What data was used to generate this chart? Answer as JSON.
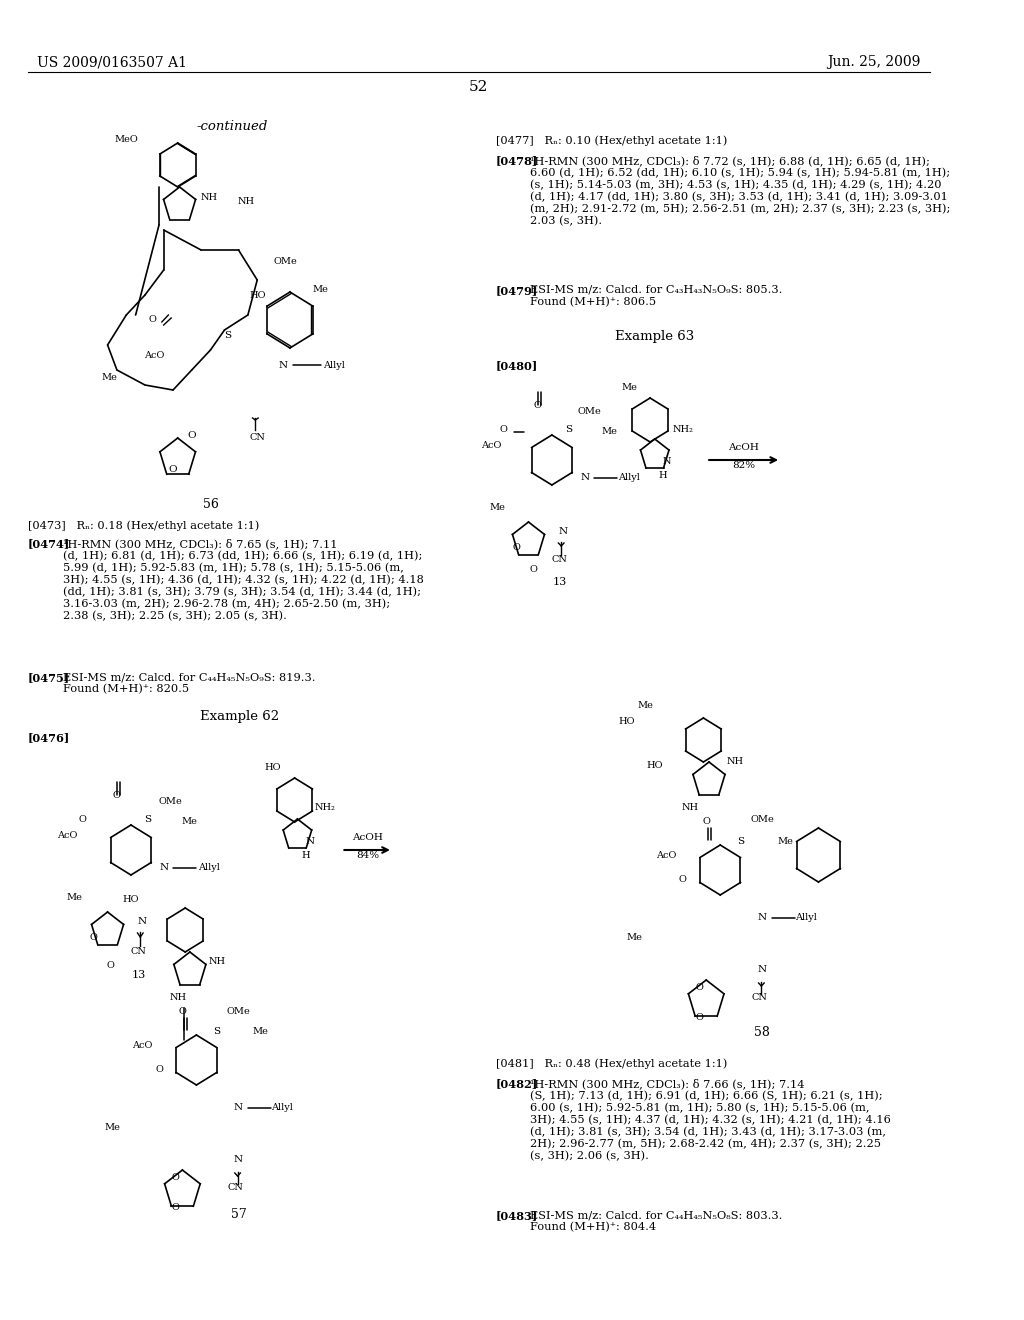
{
  "page_header_left": "US 2009/0163507 A1",
  "page_header_right": "Jun. 25, 2009",
  "page_number": "52",
  "background_color": "#ffffff",
  "text_color": "#000000",
  "continued_label": "-continued",
  "paragraph_0477": "[0477]   Rₙ: 0.10 (Hex/ethyl acetate 1:1)",
  "paragraph_0478_bold": "[0478]",
  "paragraph_0478_text": "   ¹H-RMN (300 MHz, CDCl₃): δ 7.72 (s, 1H); 6.88 (d, 1H); 6.65 (d, 1H); 6.60 (d, 1H); 6.52 (dd, 1H); 6.10 (s, 1H); 5.94 (s, 1H); 5.94-5.81 (m, 1H); (s, 1H); 5.14-5.03 (m, 3H); 4.53 (s, 1H); 4.35 (d, 1H); 4.29 (s, 1H); 4.20 (d, 1H); 4.17 (dd, 1H); 3.80 (s, 3H); 3.53 (d, 1H); 3.41 (d, 1H); 3.09-3.01 (m, 2H); 2.91-2.72 (m, 5H); 2.56-2.51 (m, 2H); 2.37 (s, 3H); 2.23 (s, 3H); 2.03 (s, 3H).",
  "paragraph_0479_bold": "[0479]",
  "paragraph_0479_text": "   ESI-MS m/z: Calcd. for C₄₃H₄₃N₅O₉S: 805.3. Found (M+H)⁺: 806.5",
  "example63": "Example 63",
  "paragraph_0480_bold": "[0480]",
  "paragraph_0473": "[0473]   Rₙ: 0.18 (Hex/ethyl acetate 1:1)",
  "paragraph_0474_bold": "[0474]",
  "paragraph_0474_text": "   ¹H-RMN (300 MHz, CDCl₃): δ 7.65 (s, 1H); 7.11 (d, 1H); 6.81 (d, 1H); 6.73 (dd, 1H); 6.66 (s, 1H); 6.19 (d, 1H); 5.99 (d, 1H); 5.92-5.83 (m, 1H); 5.78 (s, 1H); 5.15-5.06 (m, 3H); 4.55 (s, 1H); 4.36 (d, 1H); 4.32 (s, 1H); 4.22 (d, 1H); 4.18 (dd, 1H); 3.81 (s, 3H); 3.79 (s, 3H); 3.54 (d, 1H); 3.44 (d, 1H); 3.16-3.03 (m, 2H); 2.96-2.78 (m, 4H); 2.65-2.50 (m, 3H); 2.38 (s, 3H); 2.25 (s, 3H); 2.05 (s, 3H).",
  "paragraph_0475_bold": "[0475]",
  "paragraph_0475_text": "   ESI-MS m/z: Calcd. for C₄₄H₄₅N₅O₉S: 819.3. Found (M+H)⁺: 820.5",
  "example62": "Example 62",
  "paragraph_0476_bold": "[0476]",
  "paragraph_0481": "[0481]   Rₙ: 0.48 (Hex/ethyl acetate 1:1)",
  "paragraph_0482_bold": "[0482]",
  "paragraph_0482_text": "   ¹H-RMN (300 MHz, CDCl₃): δ 7.66 (s, 1H); 7.14 (S, 1H); 7.13 (d, 1H); 6.91 (d, 1H); 6.66 (S, 1H); 6.21 (s, 1H); 6.00 (s, 1H); 5.92-5.81 (m, 1H); 5.80 (s, 1H); 5.15-5.06 (m, 3H); 4.55 (s, 1H); 4.37 (d, 1H); 4.32 (s, 1H); 4.21 (d, 1H); 4.16 (d, 1H); 3.81 (s, 3H); 3.54 (d, 1H); 3.43 (d, 1H); 3.17-3.03 (m, 2H); 2.96-2.77 (m, 5H); 2.68-2.42 (m, 4H); 2.37 (s, 3H); 2.25 (s, 3H); 2.06 (s, 3H).",
  "paragraph_0483_bold": "[0483]",
  "paragraph_0483_text": "   ESI-MS m/z: Calcd. for C₄₄H₄₅N₅O₈S: 803.3. Found (M+H)⁺: 804.4"
}
